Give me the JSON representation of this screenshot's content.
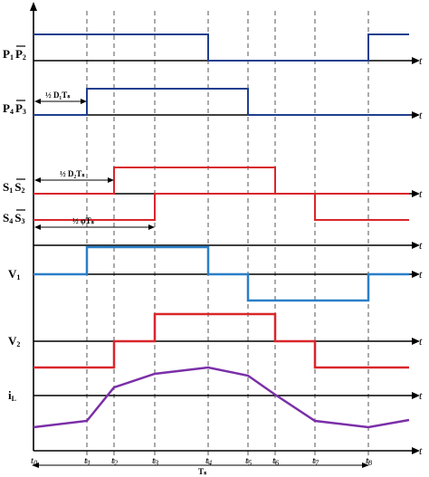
{
  "signals": {
    "p1p2": {
      "label_a": "P",
      "sub_a": "1",
      "label_b": "P",
      "sub_b": "2",
      "color": "#1f3f8f"
    },
    "p4p3": {
      "label_a": "P",
      "sub_a": "4",
      "label_b": "P",
      "sub_b": "3",
      "color": "#1f3f8f"
    },
    "s1s2": {
      "label_a": "S",
      "sub_a": "1",
      "label_b": "S",
      "sub_b": "2",
      "color": "#d9262b"
    },
    "s4s3": {
      "label_a": "S",
      "sub_a": "4",
      "label_b": "S",
      "sub_b": "3",
      "color": "#d9262b"
    },
    "v1": {
      "label": "V",
      "sub": "1",
      "color": "#2a7fc8"
    },
    "v2": {
      "label": "V",
      "sub": "2",
      "color": "#d9262b"
    },
    "il": {
      "label": "i",
      "sub": "L",
      "color": "#7b2fa8"
    }
  },
  "axis_t": "t",
  "annotations": {
    "d1": "½ D₁Tₛ",
    "d2": "½ D₂Tₛ",
    "phi": "½ φTₛ",
    "period": "Tₛ"
  },
  "times": [
    {
      "t": "t",
      "s": "0"
    },
    {
      "t": "t",
      "s": "1"
    },
    {
      "t": "t",
      "s": "2"
    },
    {
      "t": "t",
      "s": "3"
    },
    {
      "t": "t",
      "s": "4"
    },
    {
      "t": "t",
      "s": "5"
    },
    {
      "t": "t",
      "s": "6"
    },
    {
      "t": "t",
      "s": "7"
    },
    {
      "t": "t",
      "s": "8"
    }
  ]
}
